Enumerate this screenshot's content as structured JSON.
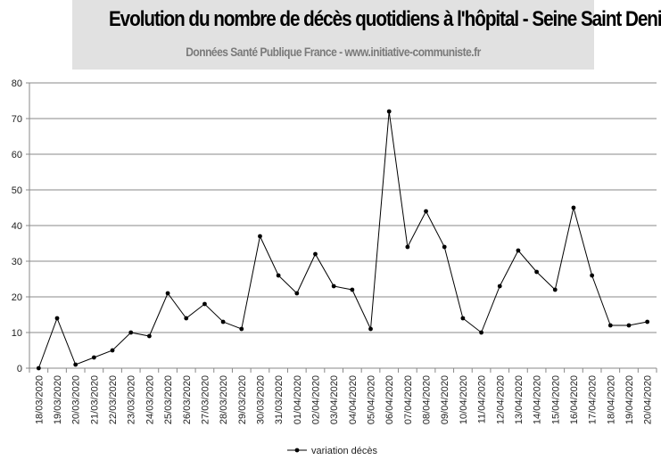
{
  "header": {
    "title": "Evolution du nombre de décès quotidiens  à l'hôpital - Seine Saint Denis",
    "subtitle": "Données Santé Publique France - www.initiative-communiste.fr"
  },
  "chart_data": {
    "type": "line",
    "title": "Evolution du nombre de décès quotidiens  à l'hôpital - Seine Saint Denis",
    "subtitle": "Données Santé Publique France - www.initiative-communiste.fr",
    "xlabel": "",
    "ylabel": "",
    "ylim": [
      0,
      80
    ],
    "yticks": [
      0,
      10,
      20,
      30,
      40,
      50,
      60,
      70,
      80
    ],
    "grid": "horizontal",
    "legend_position": "bottom",
    "categories": [
      "18/03/2020",
      "19/03/2020",
      "20/03/2020",
      "21/03/2020",
      "22/03/2020",
      "23/03/2020",
      "24/03/2020",
      "25/03/2020",
      "26/03/2020",
      "27/03/2020",
      "28/03/2020",
      "29/03/2020",
      "30/03/2020",
      "31/03/2020",
      "01/04/2020",
      "02/04/2020",
      "03/04/2020",
      "04/04/2020",
      "05/04/2020",
      "06/04/2020",
      "07/04/2020",
      "08/04/2020",
      "09/04/2020",
      "10/04/2020",
      "11/04/2020",
      "12/04/2020",
      "13/04/2020",
      "14/04/2020",
      "15/04/2020",
      "16/04/2020",
      "17/04/2020",
      "18/04/2020",
      "19/04/2020",
      "20/04/2020"
    ],
    "series": [
      {
        "name": "variation décès",
        "color": "#000000",
        "values": [
          0,
          14,
          1,
          3,
          5,
          10,
          9,
          21,
          14,
          18,
          13,
          11,
          37,
          26,
          21,
          32,
          23,
          22,
          11,
          72,
          34,
          44,
          34,
          14,
          10,
          23,
          33,
          27,
          22,
          45,
          26,
          12,
          12,
          13
        ]
      }
    ]
  }
}
